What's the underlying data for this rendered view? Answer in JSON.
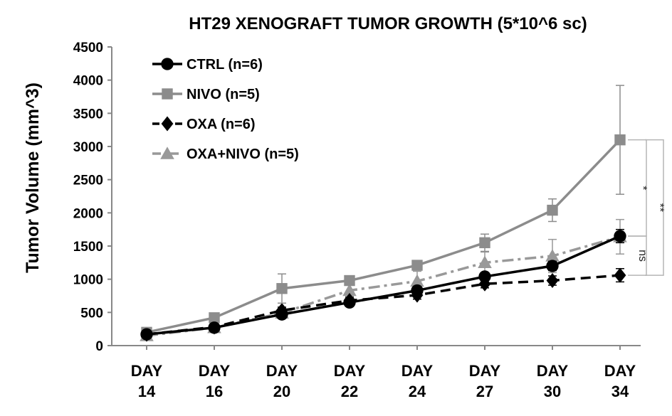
{
  "chart_data": {
    "type": "line",
    "title": "HT29  XENOGRAFT TUMOR GROWTH (5*10^6 sc)",
    "xlabel": "",
    "ylabel": "Tumor Volume (mm^3)",
    "ylim": [
      0,
      4500
    ],
    "yticks": [
      0,
      500,
      1000,
      1500,
      2000,
      2500,
      3000,
      3500,
      4000,
      4500
    ],
    "categories": [
      [
        "DAY",
        "14"
      ],
      [
        "DAY",
        "16"
      ],
      [
        "DAY",
        "20"
      ],
      [
        "DAY",
        "22"
      ],
      [
        "DAY",
        "24"
      ],
      [
        "DAY",
        "27"
      ],
      [
        "DAY",
        "30"
      ],
      [
        "DAY",
        "34"
      ]
    ],
    "legend_position": "top-left",
    "series": [
      {
        "name": "CTRL (n=6)",
        "color": "#000000",
        "dash": "solid",
        "marker": "circle",
        "values": [
          170,
          270,
          470,
          650,
          830,
          1040,
          1200,
          1650
        ],
        "errors": [
          30,
          40,
          50,
          50,
          60,
          60,
          70,
          100
        ]
      },
      {
        "name": "NIVO (n=5)",
        "color": "#8c8c8c",
        "dash": "solid",
        "marker": "square",
        "values": [
          200,
          420,
          860,
          980,
          1210,
          1550,
          2040,
          3100
        ],
        "errors": [
          30,
          50,
          220,
          60,
          70,
          130,
          170,
          820
        ]
      },
      {
        "name": "OXA (n=6)",
        "color": "#000000",
        "dash": "dash",
        "marker": "diamond",
        "values": [
          170,
          280,
          530,
          680,
          760,
          930,
          980,
          1060
        ],
        "errors": [
          30,
          40,
          50,
          50,
          60,
          60,
          70,
          100
        ]
      },
      {
        "name": "OXA+NIVO (n=5)",
        "color": "#999999",
        "dash": "dashdot",
        "marker": "triangle",
        "values": [
          150,
          270,
          490,
          830,
          970,
          1250,
          1350,
          1640
        ],
        "errors": [
          30,
          40,
          50,
          80,
          150,
          160,
          250,
          260
        ]
      }
    ],
    "annotations": [
      {
        "text": "*",
        "from": 3100,
        "to": 1650
      },
      {
        "text": "**",
        "from": 3100,
        "to": 1060
      },
      {
        "text": "ns",
        "from": 1650,
        "to": 1060
      }
    ]
  }
}
